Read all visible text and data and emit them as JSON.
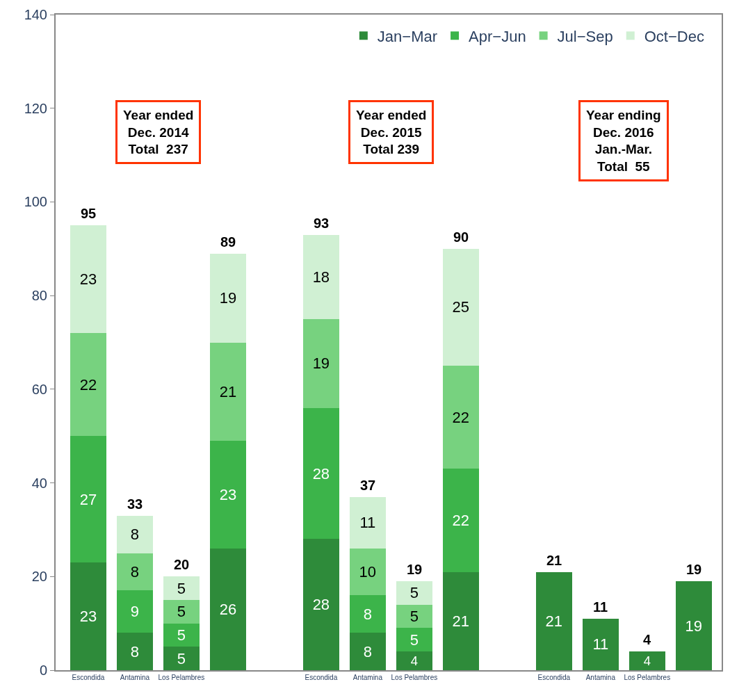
{
  "chart_data": {
    "type": "bar",
    "stacked": true,
    "data_labels": true,
    "legend": "top right",
    "categories": [
      "Escondida",
      "Antamina",
      "Los Pelambres",
      null,
      null,
      "Escondida",
      "Antamina",
      "Los Pelambres",
      null,
      null,
      "Escondida",
      "Antamina",
      "Los Pelambres",
      null
    ],
    "series": [
      {
        "name": "Jan−Mar",
        "color": "#2e8b3a",
        "values": [
          23,
          8,
          5,
          26,
          null,
          28,
          8,
          4,
          21,
          null,
          21,
          11,
          4,
          19
        ]
      },
      {
        "name": "Apr−Jun",
        "color": "#3cb44a",
        "values": [
          27,
          9,
          5,
          23,
          null,
          28,
          8,
          5,
          22,
          null,
          null,
          null,
          null,
          null
        ]
      },
      {
        "name": "Jul−Sep",
        "color": "#77d27f",
        "values": [
          22,
          8,
          5,
          21,
          null,
          19,
          10,
          5,
          22,
          null,
          null,
          null,
          null,
          null
        ]
      },
      {
        "name": "Oct−Dec",
        "color": "#d0f0d3",
        "values": [
          23,
          8,
          5,
          19,
          null,
          18,
          11,
          5,
          25,
          null,
          null,
          null,
          null,
          null
        ]
      }
    ],
    "totals": [
      "95",
      "33",
      "20",
      "89",
      null,
      "93",
      "37",
      "19",
      "90",
      null,
      "21",
      "11",
      "4",
      "19"
    ],
    "ylim": [
      0,
      140
    ],
    "yticks": [
      0,
      20,
      40,
      60,
      80,
      100,
      120,
      140
    ],
    "annotations": [
      "Year ended\nDec. 2014\nTotal  237",
      "Year ended\nDec. 2015\nTotal 239",
      "Year ending\nDec. 2016\nJan.-Mar.\nTotal  55"
    ]
  }
}
